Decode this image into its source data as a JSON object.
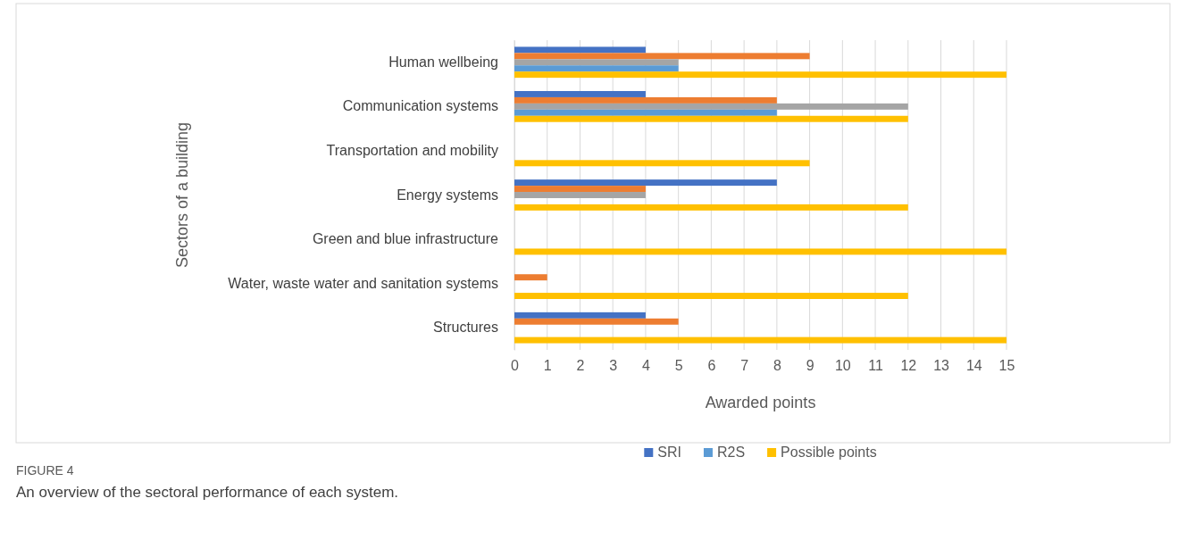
{
  "chart_data": {
    "type": "bar",
    "orientation": "horizontal",
    "xlabel": "Awarded points",
    "ylabel": "Sectors of a building",
    "categories": [
      "Human wellbeing",
      "Communication systems",
      "Transportation and mobility ",
      "Energy systems",
      "Green and blue infrastructure",
      "Water, waste water and sanitation systems",
      "Structures"
    ],
    "series": [
      {
        "name": "SRI",
        "color": "#4472c4",
        "values": [
          4,
          4,
          0,
          8,
          0,
          0,
          4
        ]
      },
      {
        "color": "#ed7d31",
        "values": [
          9,
          8,
          0,
          4,
          0,
          1,
          5
        ]
      },
      {
        "color": "#a5a5a5",
        "values": [
          5,
          12,
          0,
          4,
          0,
          0,
          0
        ]
      },
      {
        "name": "R2S",
        "color": "#5b9bd5",
        "values": [
          5,
          8,
          0,
          0,
          0,
          0,
          0
        ]
      },
      {
        "name": "Possible points",
        "color": "#ffc000",
        "values": [
          15,
          12,
          9,
          12,
          15,
          12,
          15
        ]
      }
    ],
    "xlim": [
      0,
      15
    ],
    "xticks": [
      0,
      1,
      2,
      3,
      4,
      5,
      6,
      7,
      8,
      9,
      10,
      11,
      12,
      13,
      14,
      15
    ],
    "grid": "x",
    "legend": "bottom",
    "annotations": [
      "FIGURE 4",
      "An overview of the sectoral performance of each system."
    ]
  }
}
